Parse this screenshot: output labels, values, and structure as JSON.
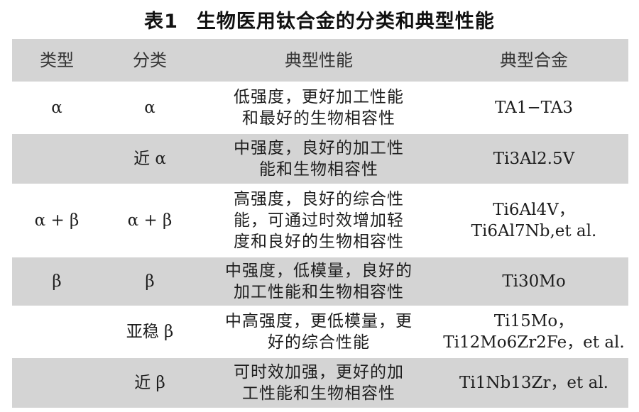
{
  "title": {
    "number": "表1",
    "text": "生物医用钛合金的分类和典型性能"
  },
  "table": {
    "headers": [
      "类型",
      "分类",
      "典型性能",
      "典型合金"
    ],
    "rows": [
      {
        "type": "α",
        "class": "α",
        "performance": [
          "低强度，更好加工性能",
          "和最好的生物相容性"
        ],
        "alloy": [
          "TA1−TA3"
        ]
      },
      {
        "type": "",
        "class": "近 α",
        "performance": [
          "中强度，良好的加工性",
          "能和生物相容性"
        ],
        "alloy": [
          "Ti3Al2.5V"
        ]
      },
      {
        "type": "α + β",
        "class": "α + β",
        "performance": [
          "高强度，良好的综合性",
          "能，可通过时效增加轻",
          "度和良好的生物相容性"
        ],
        "alloy": [
          "Ti6Al4V，",
          "Ti6Al7Nb,et al."
        ]
      },
      {
        "type": "β",
        "class": "β",
        "performance": [
          "中强度，低模量，良好的",
          "加工性能和生物相容性"
        ],
        "alloy": [
          "Ti30Mo"
        ]
      },
      {
        "type": "",
        "class": "亚稳 β",
        "performance": [
          "中高强度，更低模量，更",
          "好的综合性能"
        ],
        "alloy": [
          "Ti15Mo，",
          "Ti12Mo6Zr2Fe，et al."
        ]
      },
      {
        "type": "",
        "class": "近 β",
        "performance": [
          "可时效加强，更好的加",
          "工性能和生物相容性"
        ],
        "alloy": [
          "Ti1Nb13Zr，et al."
        ]
      }
    ]
  },
  "colors": {
    "shaded_row": "#d4d4d4",
    "text": "#1e1e1e"
  }
}
